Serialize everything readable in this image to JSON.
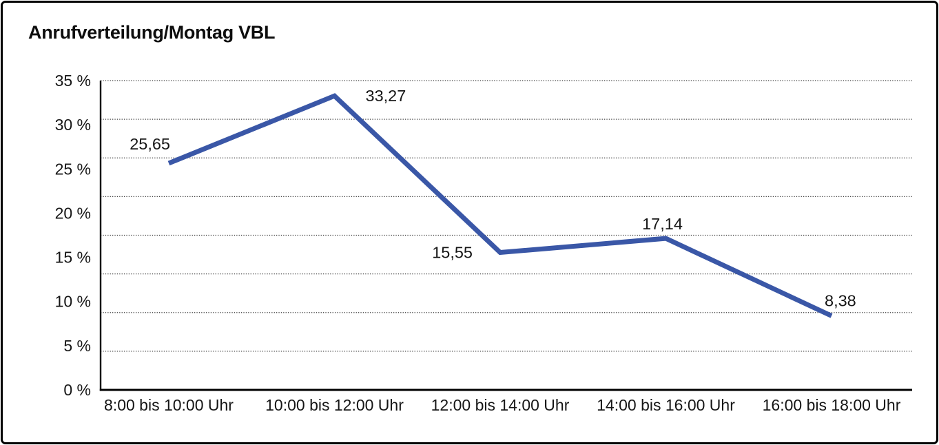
{
  "frame": {
    "background": "#ffffff",
    "border_color": "#000000"
  },
  "chart_data": {
    "type": "line",
    "title": "Anrufverteilung/Montag VBL",
    "categories": [
      "8:00 bis 10:00 Uhr",
      "10:00 bis 12:00 Uhr",
      "12:00 bis 14:00 Uhr",
      "14:00 bis 16:00 Uhr",
      "16:00 bis 18:00 Uhr"
    ],
    "values": [
      25.65,
      33.27,
      15.55,
      17.14,
      8.38
    ],
    "value_labels": [
      "25,65",
      "33,27",
      "15,55",
      "17,14",
      "8,38"
    ],
    "xlabel": "",
    "ylabel": "",
    "ylim": [
      0,
      35
    ],
    "y_ticks": [
      {
        "value": 0,
        "label": "0 %"
      },
      {
        "value": 5,
        "label": "5 %"
      },
      {
        "value": 10,
        "label": "10 %"
      },
      {
        "value": 15,
        "label": "15 %"
      },
      {
        "value": 20,
        "label": "20 %"
      },
      {
        "value": 25,
        "label": "25 %"
      },
      {
        "value": 30,
        "label": "30 %"
      },
      {
        "value": 35,
        "label": "35 %"
      }
    ],
    "grid": {
      "horizontal_divisions": 8,
      "style": "dotted",
      "color": "#404040"
    },
    "legend": "none",
    "line_color": "#3A57A7",
    "axis_color": "#000000",
    "text_color": "#161616"
  }
}
